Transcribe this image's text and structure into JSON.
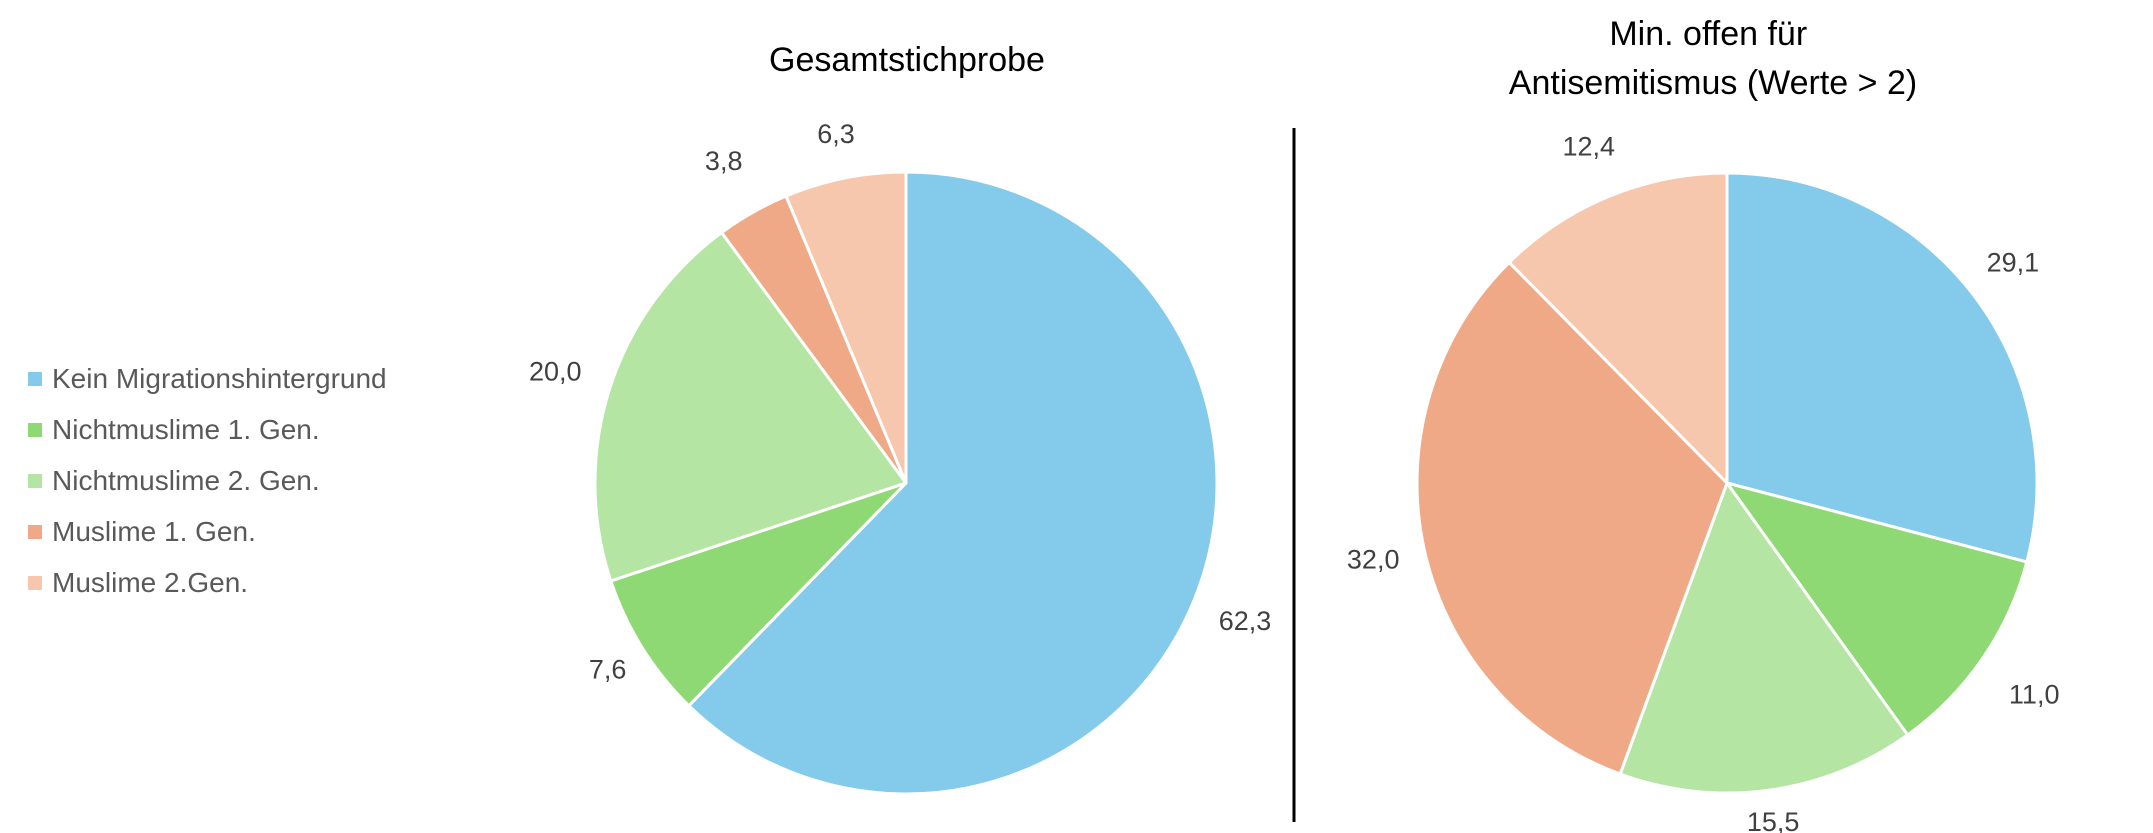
{
  "legend": {
    "items": [
      {
        "label": "Kein Migrationshintergrund",
        "color": "#83caeb"
      },
      {
        "label": "Nichtmuslime 1. Gen.",
        "color": "#8ed973"
      },
      {
        "label": "Nichtmuslime 2. Gen.",
        "color": "#b4e5a2"
      },
      {
        "label": "Muslime 1. Gen.",
        "color": "#f0a986"
      },
      {
        "label": "Muslime 2.Gen.",
        "color": "#f6c6ad"
      }
    ]
  },
  "chart_data": [
    {
      "type": "pie",
      "title": "Gesamtstichprobe",
      "categories": [
        "Kein Migrationshintergrund",
        "Nichtmuslime 1. Gen.",
        "Nichtmuslime 2. Gen.",
        "Muslime 1. Gen.",
        "Muslime 2.Gen."
      ],
      "values": [
        62.3,
        7.6,
        20.0,
        3.8,
        6.3
      ],
      "labels": [
        "62,3",
        "7,6",
        "20,0",
        "3,8",
        "6,3"
      ],
      "colors": [
        "#83caeb",
        "#8ed973",
        "#b4e5a2",
        "#f0a986",
        "#f6c6ad"
      ],
      "legend": "left"
    },
    {
      "type": "pie",
      "title": "Min. offen für Antisemitismus (Werte > 2)",
      "title_lines": [
        "Min. offen für",
        "Antisemitismus (Werte > 2)"
      ],
      "categories": [
        "Kein Migrationshintergrund",
        "Nichtmuslime 1. Gen.",
        "Nichtmuslime 2. Gen.",
        "Muslime 1. Gen.",
        "Muslime 2.Gen."
      ],
      "values": [
        29.1,
        11.0,
        15.5,
        32.0,
        12.4
      ],
      "labels": [
        "29,1",
        "11,0",
        "15,5",
        "32,0",
        "12,4"
      ],
      "colors": [
        "#83caeb",
        "#8ed973",
        "#b4e5a2",
        "#f0a986",
        "#f6c6ad"
      ],
      "legend": "left"
    }
  ]
}
